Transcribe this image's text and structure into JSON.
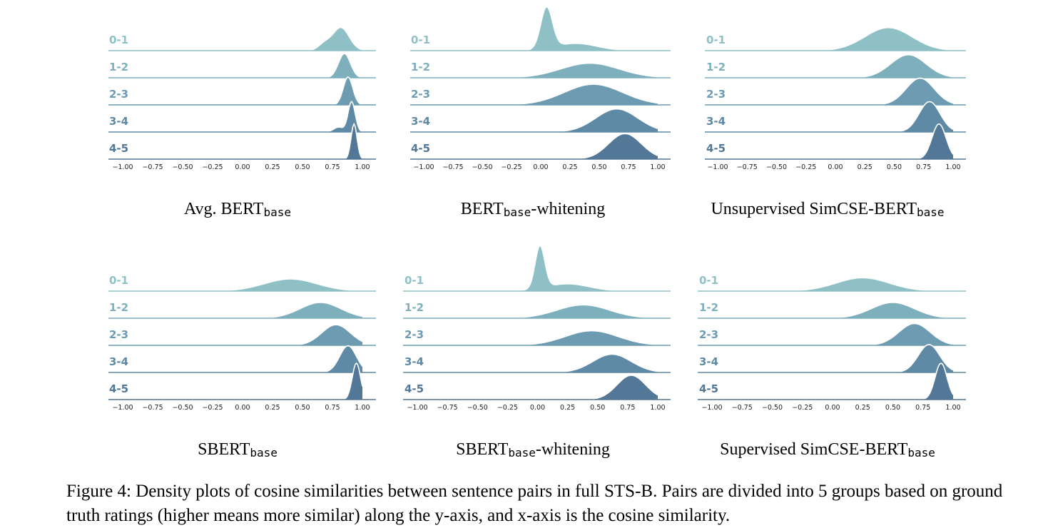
{
  "caption": "Figure 4: Density plots of cosine similarities between sentence pairs in full STS-B. Pairs are divided into 5 groups based on ground truth ratings (higher means more similar) along the y-axis, and x-axis is the cosine similarity.",
  "colors": [
    "#8fc0c5",
    "#7eafbd",
    "#6d9cb2",
    "#5f8aa6",
    "#537796"
  ],
  "chart_data": [
    {
      "type": "area",
      "title_main": "Avg. BERT",
      "title_sub": "base",
      "title_after": "",
      "groups": [
        "0-1",
        "1-2",
        "2-3",
        "3-4",
        "4-5"
      ],
      "x_ticks": [
        "−1.00",
        "−0.75",
        "−0.50",
        "−0.25",
        "0.00",
        "0.25",
        "0.50",
        "0.75",
        "1.00"
      ],
      "xlim": [
        -1.0,
        1.0
      ],
      "series": [
        {
          "mean": 0.82,
          "sd": 0.07,
          "amp": 0.95,
          "extra": [
            {
              "c": 0.68,
              "s": 0.05,
              "a": 0.25
            }
          ]
        },
        {
          "mean": 0.85,
          "sd": 0.05,
          "amp": 1.0
        },
        {
          "mean": 0.88,
          "sd": 0.04,
          "amp": 1.15
        },
        {
          "mean": 0.91,
          "sd": 0.03,
          "amp": 1.25,
          "extra": [
            {
              "c": 0.8,
              "s": 0.04,
              "a": 0.2
            }
          ]
        },
        {
          "mean": 0.93,
          "sd": 0.025,
          "amp": 1.45
        }
      ]
    },
    {
      "type": "area",
      "title_main": "BERT",
      "title_sub": "base",
      "title_after": "-whitening",
      "groups": [
        "0-1",
        "1-2",
        "2-3",
        "3-4",
        "4-5"
      ],
      "x_ticks": [
        "−1.00",
        "−0.75",
        "−0.50",
        "−0.25",
        "0.00",
        "0.25",
        "0.50",
        "0.75",
        "1.00"
      ],
      "xlim": [
        -1.0,
        1.0
      ],
      "series": [
        {
          "mean": 0.05,
          "sd": 0.05,
          "amp": 1.7,
          "extra": [
            {
              "c": 0.3,
              "s": 0.18,
              "a": 0.3
            }
          ]
        },
        {
          "mean": 0.42,
          "sd": 0.25,
          "amp": 0.6
        },
        {
          "mean": 0.45,
          "sd": 0.25,
          "amp": 0.85
        },
        {
          "mean": 0.65,
          "sd": 0.18,
          "amp": 0.95
        },
        {
          "mean": 0.72,
          "sd": 0.14,
          "amp": 1.05
        }
      ]
    },
    {
      "type": "area",
      "title_main": "Unsupervised SimCSE-BERT",
      "title_sub": "base",
      "title_after": "",
      "groups": [
        "0-1",
        "1-2",
        "2-3",
        "3-4",
        "4-5"
      ],
      "x_ticks": [
        "−1.00",
        "−0.75",
        "−0.50",
        "−0.25",
        "0.00",
        "0.25",
        "0.50",
        "0.75",
        "1.00"
      ],
      "xlim": [
        -1.0,
        1.0
      ],
      "series": [
        {
          "mean": 0.45,
          "sd": 0.2,
          "amp": 0.95
        },
        {
          "mean": 0.62,
          "sd": 0.15,
          "amp": 0.95
        },
        {
          "mean": 0.72,
          "sd": 0.12,
          "amp": 1.1
        },
        {
          "mean": 0.8,
          "sd": 0.09,
          "amp": 1.25
        },
        {
          "mean": 0.88,
          "sd": 0.06,
          "amp": 1.45
        }
      ]
    },
    {
      "type": "area",
      "title_main": "SBERT",
      "title_sub": "base",
      "title_after": "",
      "groups": [
        "0-1",
        "1-2",
        "2-3",
        "3-4",
        "4-5"
      ],
      "x_ticks": [
        "−1.00",
        "−0.75",
        "−0.50",
        "−0.25",
        "0.00",
        "0.25",
        "0.50",
        "0.75",
        "1.00"
      ],
      "xlim": [
        -1.0,
        1.0
      ],
      "series": [
        {
          "mean": 0.4,
          "sd": 0.22,
          "amp": 0.5
        },
        {
          "mean": 0.65,
          "sd": 0.17,
          "amp": 0.65
        },
        {
          "mean": 0.78,
          "sd": 0.12,
          "amp": 0.85
        },
        {
          "mean": 0.88,
          "sd": 0.07,
          "amp": 1.1
        },
        {
          "mean": 0.95,
          "sd": 0.035,
          "amp": 1.5
        }
      ]
    },
    {
      "type": "area",
      "title_main": "SBERT",
      "title_sub": "base",
      "title_after": "-whitening",
      "groups": [
        "0-1",
        "1-2",
        "2-3",
        "3-4",
        "4-5"
      ],
      "x_ticks": [
        "−1.00",
        "−0.75",
        "−0.50",
        "−0.25",
        "0.00",
        "0.25",
        "0.50",
        "0.75",
        "1.00"
      ],
      "xlim": [
        -1.0,
        1.0
      ],
      "series": [
        {
          "mean": 0.02,
          "sd": 0.04,
          "amp": 1.75,
          "extra": [
            {
              "c": 0.25,
              "s": 0.18,
              "a": 0.3
            }
          ]
        },
        {
          "mean": 0.38,
          "sd": 0.22,
          "amp": 0.55
        },
        {
          "mean": 0.45,
          "sd": 0.22,
          "amp": 0.6
        },
        {
          "mean": 0.62,
          "sd": 0.16,
          "amp": 0.75
        },
        {
          "mean": 0.78,
          "sd": 0.12,
          "amp": 1.0
        }
      ]
    },
    {
      "type": "area",
      "title_main": "Supervised SimCSE-BERT",
      "title_sub": "base",
      "title_after": "",
      "groups": [
        "0-1",
        "1-2",
        "2-3",
        "3-4",
        "4-5"
      ],
      "x_ticks": [
        "−1.00",
        "−0.75",
        "−0.50",
        "−0.25",
        "0.00",
        "0.25",
        "0.50",
        "0.75",
        "1.00"
      ],
      "xlim": [
        -1.0,
        1.0
      ],
      "series": [
        {
          "mean": 0.25,
          "sd": 0.22,
          "amp": 0.55
        },
        {
          "mean": 0.5,
          "sd": 0.18,
          "amp": 0.65
        },
        {
          "mean": 0.68,
          "sd": 0.13,
          "amp": 0.9
        },
        {
          "mean": 0.8,
          "sd": 0.09,
          "amp": 1.15
        },
        {
          "mean": 0.9,
          "sd": 0.05,
          "amp": 1.5
        }
      ]
    }
  ]
}
